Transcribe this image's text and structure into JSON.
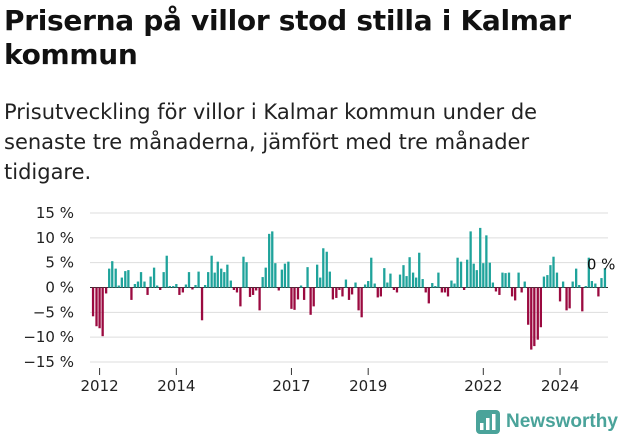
{
  "title": "Priserna på villor stod stilla i Kalmar kommun",
  "subtitle": "Prisutveckling för villor i Kalmar kommun under de senaste tre månaderna, jämfört med tre månader tidigare.",
  "brand": {
    "name": "Newsworthy",
    "color": "#4aa39a",
    "icon": "newsworthy-chart-icon"
  },
  "colors": {
    "positive": "#1fa39b",
    "negative": "#9b0a40",
    "grid": "#dddddd",
    "zero_line": "#333333"
  },
  "chart_data": {
    "type": "bar",
    "title": "",
    "xlabel": "",
    "ylabel": "",
    "ylim": [
      -15,
      15
    ],
    "yticks": [
      15,
      10,
      5,
      0,
      -5,
      -10,
      -15
    ],
    "ytick_labels": [
      "15 %",
      "10 %",
      "5 %",
      "0 %",
      "−5 %",
      "−10 %",
      "−15 %"
    ],
    "xticks": [
      2012,
      2014,
      2017,
      2019,
      2022,
      2024
    ],
    "x_range": [
      2011.75,
      2025.25
    ],
    "annotation": {
      "text": "0 %",
      "x": 2024.75,
      "y": 0
    },
    "series": [
      {
        "values": [
          [
            2011.83,
            -5.8
          ],
          [
            2011.92,
            -7.8
          ],
          [
            2012.0,
            -8.2
          ],
          [
            2012.08,
            -9.8
          ],
          [
            2012.17,
            -1.2
          ],
          [
            2012.25,
            3.8
          ],
          [
            2012.33,
            5.3
          ],
          [
            2012.42,
            3.8
          ],
          [
            2012.5,
            0.4
          ],
          [
            2012.58,
            2.0
          ],
          [
            2012.67,
            3.3
          ],
          [
            2012.75,
            3.5
          ],
          [
            2012.83,
            -2.5
          ],
          [
            2012.92,
            0.7
          ],
          [
            2013.0,
            1.2
          ],
          [
            2013.08,
            3.1
          ],
          [
            2013.17,
            1.2
          ],
          [
            2013.25,
            -1.5
          ],
          [
            2013.33,
            2.2
          ],
          [
            2013.42,
            4.0
          ],
          [
            2013.5,
            0.4
          ],
          [
            2013.58,
            -0.5
          ],
          [
            2013.67,
            3.1
          ],
          [
            2013.75,
            6.4
          ],
          [
            2013.83,
            0.3
          ],
          [
            2013.92,
            0.3
          ],
          [
            2014.0,
            0.7
          ],
          [
            2014.08,
            -1.5
          ],
          [
            2014.17,
            -1.0
          ],
          [
            2014.25,
            0.6
          ],
          [
            2014.33,
            3.1
          ],
          [
            2014.42,
            -0.4
          ],
          [
            2014.5,
            0.5
          ],
          [
            2014.58,
            3.2
          ],
          [
            2014.67,
            -6.6
          ],
          [
            2014.75,
            0.5
          ],
          [
            2014.83,
            3.1
          ],
          [
            2014.92,
            6.4
          ],
          [
            2015.0,
            3.0
          ],
          [
            2015.08,
            5.2
          ],
          [
            2015.17,
            3.8
          ],
          [
            2015.25,
            3.1
          ],
          [
            2015.33,
            4.6
          ],
          [
            2015.42,
            1.4
          ],
          [
            2015.5,
            -0.5
          ],
          [
            2015.58,
            -1.0
          ],
          [
            2015.67,
            -3.8
          ],
          [
            2015.75,
            6.2
          ],
          [
            2015.83,
            5.1
          ],
          [
            2015.92,
            -1.9
          ],
          [
            2016.0,
            -1.5
          ],
          [
            2016.08,
            -0.6
          ],
          [
            2016.17,
            -4.6
          ],
          [
            2016.25,
            2.1
          ],
          [
            2016.33,
            4.0
          ],
          [
            2016.42,
            10.8
          ],
          [
            2016.5,
            11.3
          ],
          [
            2016.58,
            4.9
          ],
          [
            2016.67,
            -0.6
          ],
          [
            2016.75,
            3.6
          ],
          [
            2016.83,
            4.8
          ],
          [
            2016.92,
            5.2
          ],
          [
            2017.0,
            -4.3
          ],
          [
            2017.08,
            -4.5
          ],
          [
            2017.17,
            -2.4
          ],
          [
            2017.25,
            0.4
          ],
          [
            2017.33,
            -2.5
          ],
          [
            2017.42,
            4.1
          ],
          [
            2017.5,
            -5.5
          ],
          [
            2017.58,
            -3.8
          ],
          [
            2017.67,
            4.6
          ],
          [
            2017.75,
            2.0
          ],
          [
            2017.83,
            7.9
          ],
          [
            2017.92,
            7.2
          ],
          [
            2018.0,
            3.2
          ],
          [
            2018.08,
            -2.4
          ],
          [
            2018.17,
            -2.1
          ],
          [
            2018.25,
            -0.5
          ],
          [
            2018.33,
            -1.8
          ],
          [
            2018.42,
            1.6
          ],
          [
            2018.5,
            -2.5
          ],
          [
            2018.58,
            -1.4
          ],
          [
            2018.67,
            1.0
          ],
          [
            2018.75,
            -4.6
          ],
          [
            2018.83,
            -6.0
          ],
          [
            2018.92,
            0.6
          ],
          [
            2019.0,
            1.3
          ],
          [
            2019.08,
            6.0
          ],
          [
            2019.17,
            0.8
          ],
          [
            2019.25,
            -2.0
          ],
          [
            2019.33,
            -1.8
          ],
          [
            2019.42,
            3.9
          ],
          [
            2019.5,
            1.0
          ],
          [
            2019.58,
            2.8
          ],
          [
            2019.67,
            -0.5
          ],
          [
            2019.75,
            -1.0
          ],
          [
            2019.83,
            2.6
          ],
          [
            2019.92,
            4.5
          ],
          [
            2020.0,
            2.3
          ],
          [
            2020.08,
            6.1
          ],
          [
            2020.17,
            3.0
          ],
          [
            2020.25,
            2.0
          ],
          [
            2020.33,
            7.0
          ],
          [
            2020.42,
            1.7
          ],
          [
            2020.5,
            -1.0
          ],
          [
            2020.58,
            -3.2
          ],
          [
            2020.67,
            0.9
          ],
          [
            2020.75,
            0.3
          ],
          [
            2020.83,
            3.0
          ],
          [
            2020.92,
            -1.0
          ],
          [
            2021.0,
            -1.0
          ],
          [
            2021.08,
            -1.8
          ],
          [
            2021.17,
            1.4
          ],
          [
            2021.25,
            0.8
          ],
          [
            2021.33,
            6.0
          ],
          [
            2021.42,
            5.2
          ],
          [
            2021.5,
            -0.5
          ],
          [
            2021.58,
            5.6
          ],
          [
            2021.67,
            11.3
          ],
          [
            2021.75,
            4.8
          ],
          [
            2021.83,
            3.5
          ],
          [
            2021.92,
            12.0
          ],
          [
            2022.0,
            4.9
          ],
          [
            2022.08,
            10.5
          ],
          [
            2022.17,
            5.0
          ],
          [
            2022.25,
            1.0
          ],
          [
            2022.33,
            -0.8
          ],
          [
            2022.42,
            -1.5
          ],
          [
            2022.5,
            3.0
          ],
          [
            2022.58,
            2.9
          ],
          [
            2022.67,
            3.0
          ],
          [
            2022.75,
            -1.8
          ],
          [
            2022.83,
            -2.6
          ],
          [
            2022.92,
            3.0
          ],
          [
            2023.0,
            -1.0
          ],
          [
            2023.08,
            1.2
          ],
          [
            2023.17,
            -7.5
          ],
          [
            2023.25,
            -12.5
          ],
          [
            2023.33,
            -11.8
          ],
          [
            2023.42,
            -10.5
          ],
          [
            2023.5,
            -8.0
          ],
          [
            2023.58,
            2.2
          ],
          [
            2023.67,
            2.5
          ],
          [
            2023.75,
            4.5
          ],
          [
            2023.83,
            6.2
          ],
          [
            2023.92,
            3.0
          ],
          [
            2024.0,
            -2.8
          ],
          [
            2024.08,
            1.2
          ],
          [
            2024.17,
            -4.6
          ],
          [
            2024.25,
            -4.2
          ],
          [
            2024.33,
            1.2
          ],
          [
            2024.42,
            3.8
          ],
          [
            2024.5,
            0.5
          ],
          [
            2024.58,
            -4.8
          ],
          [
            2024.67,
            0.3
          ],
          [
            2024.75,
            6.0
          ],
          [
            2024.83,
            1.3
          ],
          [
            2024.92,
            0.8
          ],
          [
            2025.0,
            -1.8
          ],
          [
            2025.08,
            1.9
          ],
          [
            2025.17,
            3.9
          ]
        ]
      }
    ]
  }
}
